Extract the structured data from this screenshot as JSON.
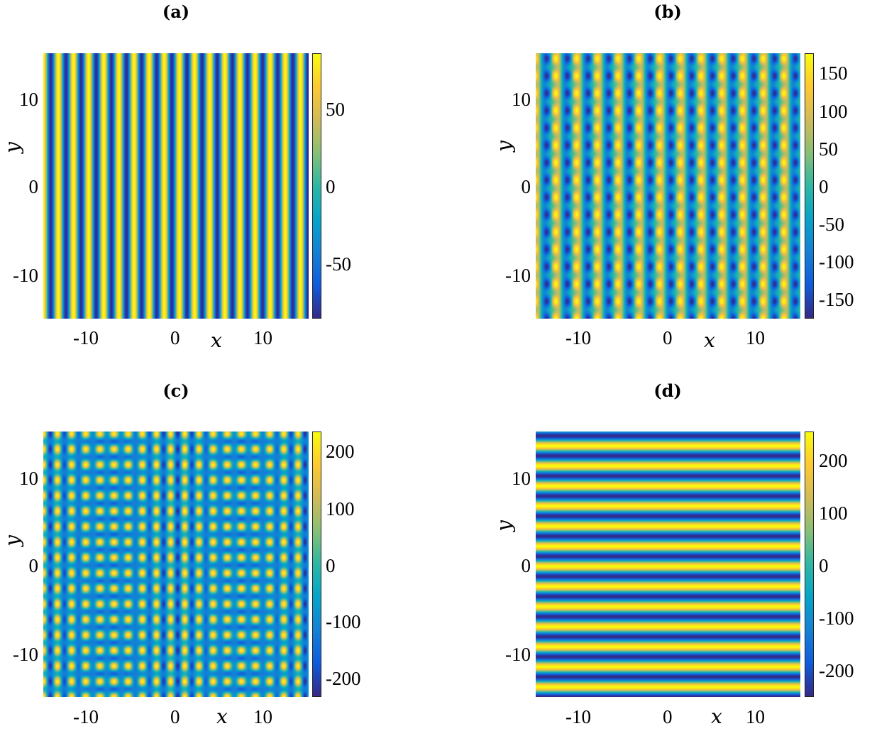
{
  "colors": {
    "colormap": "parula",
    "parula_stops": [
      "#352a87",
      "#0f5cdd",
      "#1481d6",
      "#06a4ca",
      "#2eb7a4",
      "#87bf77",
      "#d1bb59",
      "#fec832",
      "#f9fb0e"
    ]
  },
  "chart_data": [
    {
      "panel": "(a)",
      "type": "heatmap",
      "title": "(a)",
      "xlabel": "x",
      "ylabel": "y",
      "xlim": [
        -15,
        15
      ],
      "ylim": [
        -15,
        15
      ],
      "xticks": [
        "-10",
        "0",
        "10"
      ],
      "yticks": [
        "10",
        "0",
        "-10"
      ],
      "clim": [
        -85,
        85
      ],
      "colorbar_ticks": [
        "50",
        "0",
        "-50"
      ],
      "pattern": "vertical stripes along x",
      "stripe_period_x": 1.71
    },
    {
      "panel": "(b)",
      "type": "heatmap",
      "title": "(b)",
      "xlabel": "x",
      "ylabel": "y",
      "xlim": [
        -15,
        15
      ],
      "ylim": [
        -15,
        15
      ],
      "xticks": [
        "-10",
        "0",
        "10"
      ],
      "yticks": [
        "10",
        "0",
        "-10"
      ],
      "clim": [
        -175,
        175
      ],
      "colorbar_ticks": [
        "150",
        "100",
        "50",
        "0",
        "-50",
        "-100",
        "-150"
      ],
      "pattern": "vertical stripes modulated by a weaker lattice along y",
      "stripe_period_x": 2.35,
      "lattice_period_y": 1.96
    },
    {
      "panel": "(c)",
      "type": "heatmap",
      "title": "(c)",
      "xlabel": "x",
      "ylabel": "y",
      "xlim": [
        -15,
        15
      ],
      "ylim": [
        -15,
        15
      ],
      "xticks": [
        "-10",
        "0",
        "10"
      ],
      "yticks": [
        "10",
        "0",
        "-10"
      ],
      "clim": [
        -235,
        235
      ],
      "colorbar_ticks": [
        "200",
        "100",
        "0",
        "-100",
        "-200"
      ],
      "pattern": "two-dimensional lattice with beating along x",
      "period_x": 1.6,
      "period_y": 1.75
    },
    {
      "panel": "(d)",
      "type": "heatmap",
      "title": "(d)",
      "xlabel": "x",
      "ylabel": "y",
      "xlim": [
        -15,
        15
      ],
      "ylim": [
        -15,
        15
      ],
      "xticks": [
        "-10",
        "0",
        "10"
      ],
      "yticks": [
        "10",
        "0",
        "-10"
      ],
      "clim": [
        -255,
        255
      ],
      "colorbar_ticks": [
        "200",
        "100",
        "0",
        "-100",
        "-200"
      ],
      "pattern": "horizontal stripes along y",
      "stripe_period_y": 2.27
    }
  ]
}
